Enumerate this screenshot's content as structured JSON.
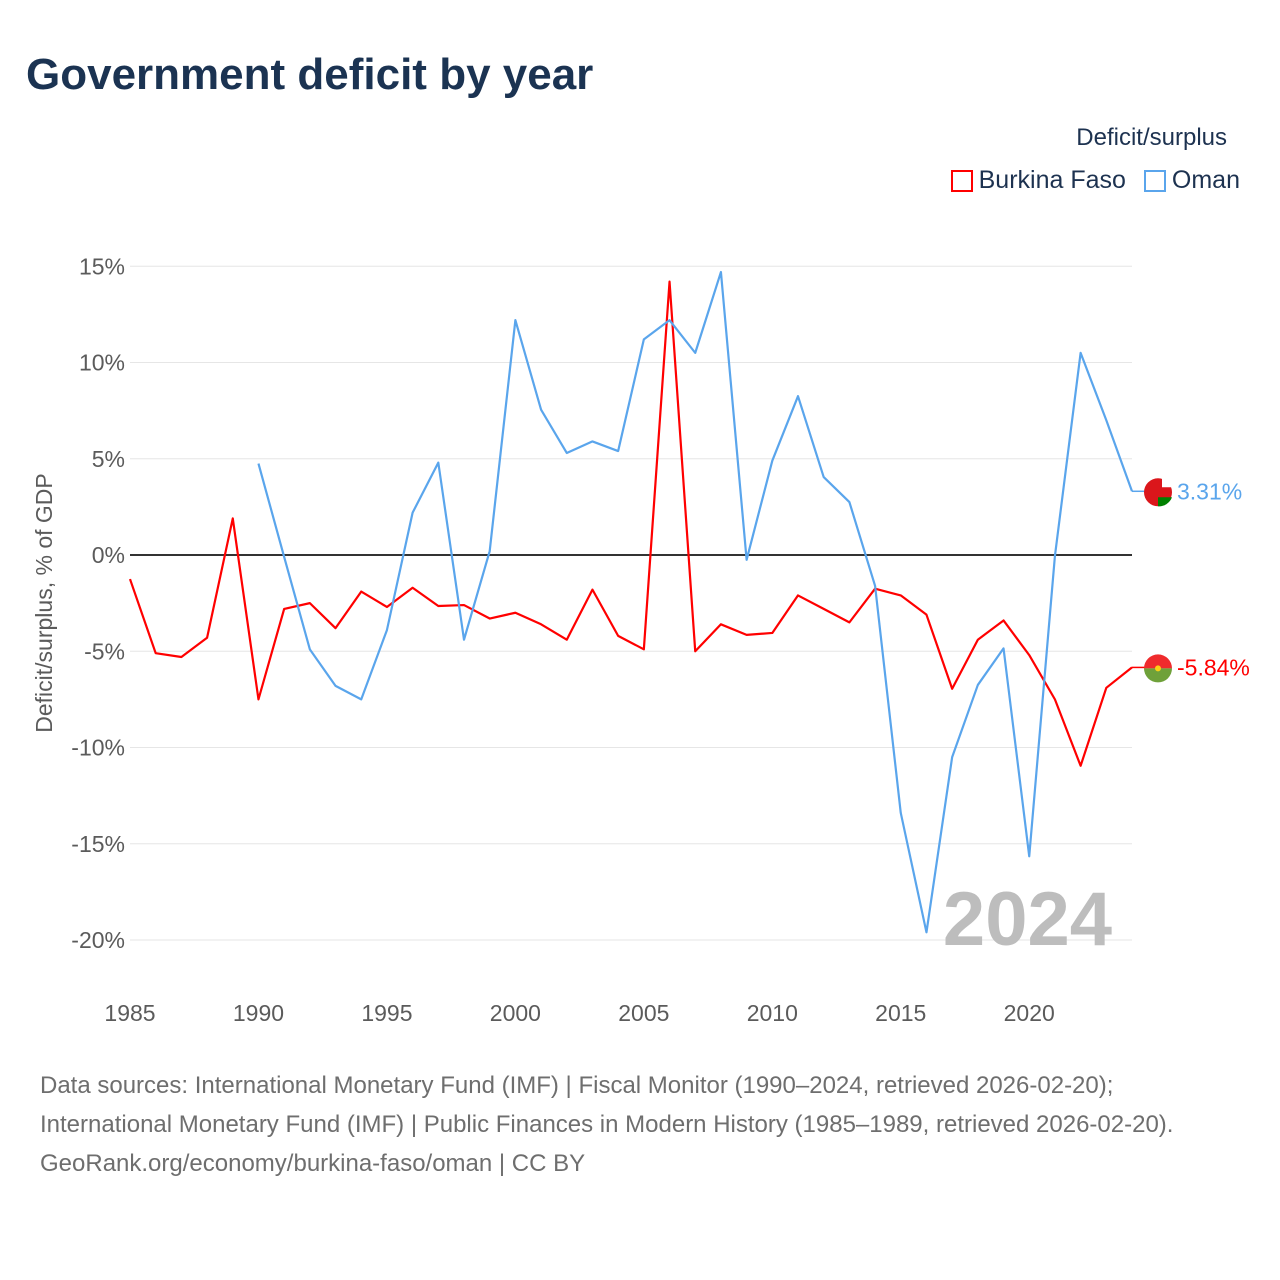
{
  "title": "Government deficit by year",
  "legend": {
    "title": "Deficit/surplus",
    "items": [
      {
        "label": "Burkina Faso",
        "color": "#ff0000"
      },
      {
        "label": "Oman",
        "color": "#5aa5ec"
      }
    ]
  },
  "watermark_year": "2024",
  "sources": "Data sources: International Monetary Fund (IMF) | Fiscal Monitor (1990–2024, retrieved 2026-02-20); International Monetary Fund (IMF) | Public Finances in Modern History (1985–1989, retrieved 2026-02-20).",
  "credit": "GeoRank.org/economy/burkina-faso/oman | CC BY",
  "chart_data": {
    "type": "line",
    "title": "Government deficit by year",
    "xlabel": "",
    "ylabel": "Deficit/surplus, % of GDP",
    "xlim": [
      1985,
      2024
    ],
    "ylim": [
      -20,
      15
    ],
    "yticks": [
      15,
      10,
      5,
      0,
      -5,
      -10,
      -15,
      -20
    ],
    "ytick_labels": [
      "15%",
      "10%",
      "5%",
      "0%",
      "-5%",
      "-10%",
      "-15%",
      "-20%"
    ],
    "xticks": [
      1985,
      1990,
      1995,
      2000,
      2005,
      2010,
      2015,
      2020
    ],
    "xtick_labels": [
      "1985",
      "1990",
      "1995",
      "2000",
      "2005",
      "2010",
      "2015",
      "2020"
    ],
    "grid": true,
    "legend_position": "top-right",
    "series": [
      {
        "name": "Burkina Faso",
        "color": "#ff0000",
        "end_label": "-5.84%",
        "start_year": 1985,
        "values": [
          -1.25,
          -5.1,
          -5.3,
          -4.3,
          1.9,
          -7.5,
          -2.8,
          -2.5,
          -3.8,
          -1.9,
          -2.7,
          -1.7,
          -2.65,
          -2.6,
          -3.3,
          -3.0,
          -3.6,
          -4.4,
          -1.8,
          -4.2,
          -4.9,
          14.2,
          -5.0,
          -3.6,
          -4.15,
          -4.05,
          -2.1,
          -2.8,
          -3.5,
          -1.75,
          -2.1,
          -3.1,
          -6.95,
          -4.4,
          -3.4,
          -5.2,
          -7.5,
          -10.95,
          -6.9,
          -5.84
        ]
      },
      {
        "name": "Oman",
        "color": "#5aa5ec",
        "end_label": "3.31%",
        "start_year": 1990,
        "values": [
          4.75,
          -0.1,
          -4.9,
          -6.8,
          -7.5,
          -3.9,
          2.2,
          4.8,
          -4.4,
          0.2,
          12.2,
          7.55,
          5.3,
          5.9,
          5.4,
          11.2,
          12.2,
          10.5,
          14.7,
          -0.25,
          4.9,
          8.25,
          4.05,
          2.75,
          -1.6,
          -13.4,
          -19.6,
          -10.5,
          -6.75,
          -4.85,
          -15.65,
          -0.05,
          10.5,
          7.0,
          3.31
        ]
      }
    ]
  }
}
